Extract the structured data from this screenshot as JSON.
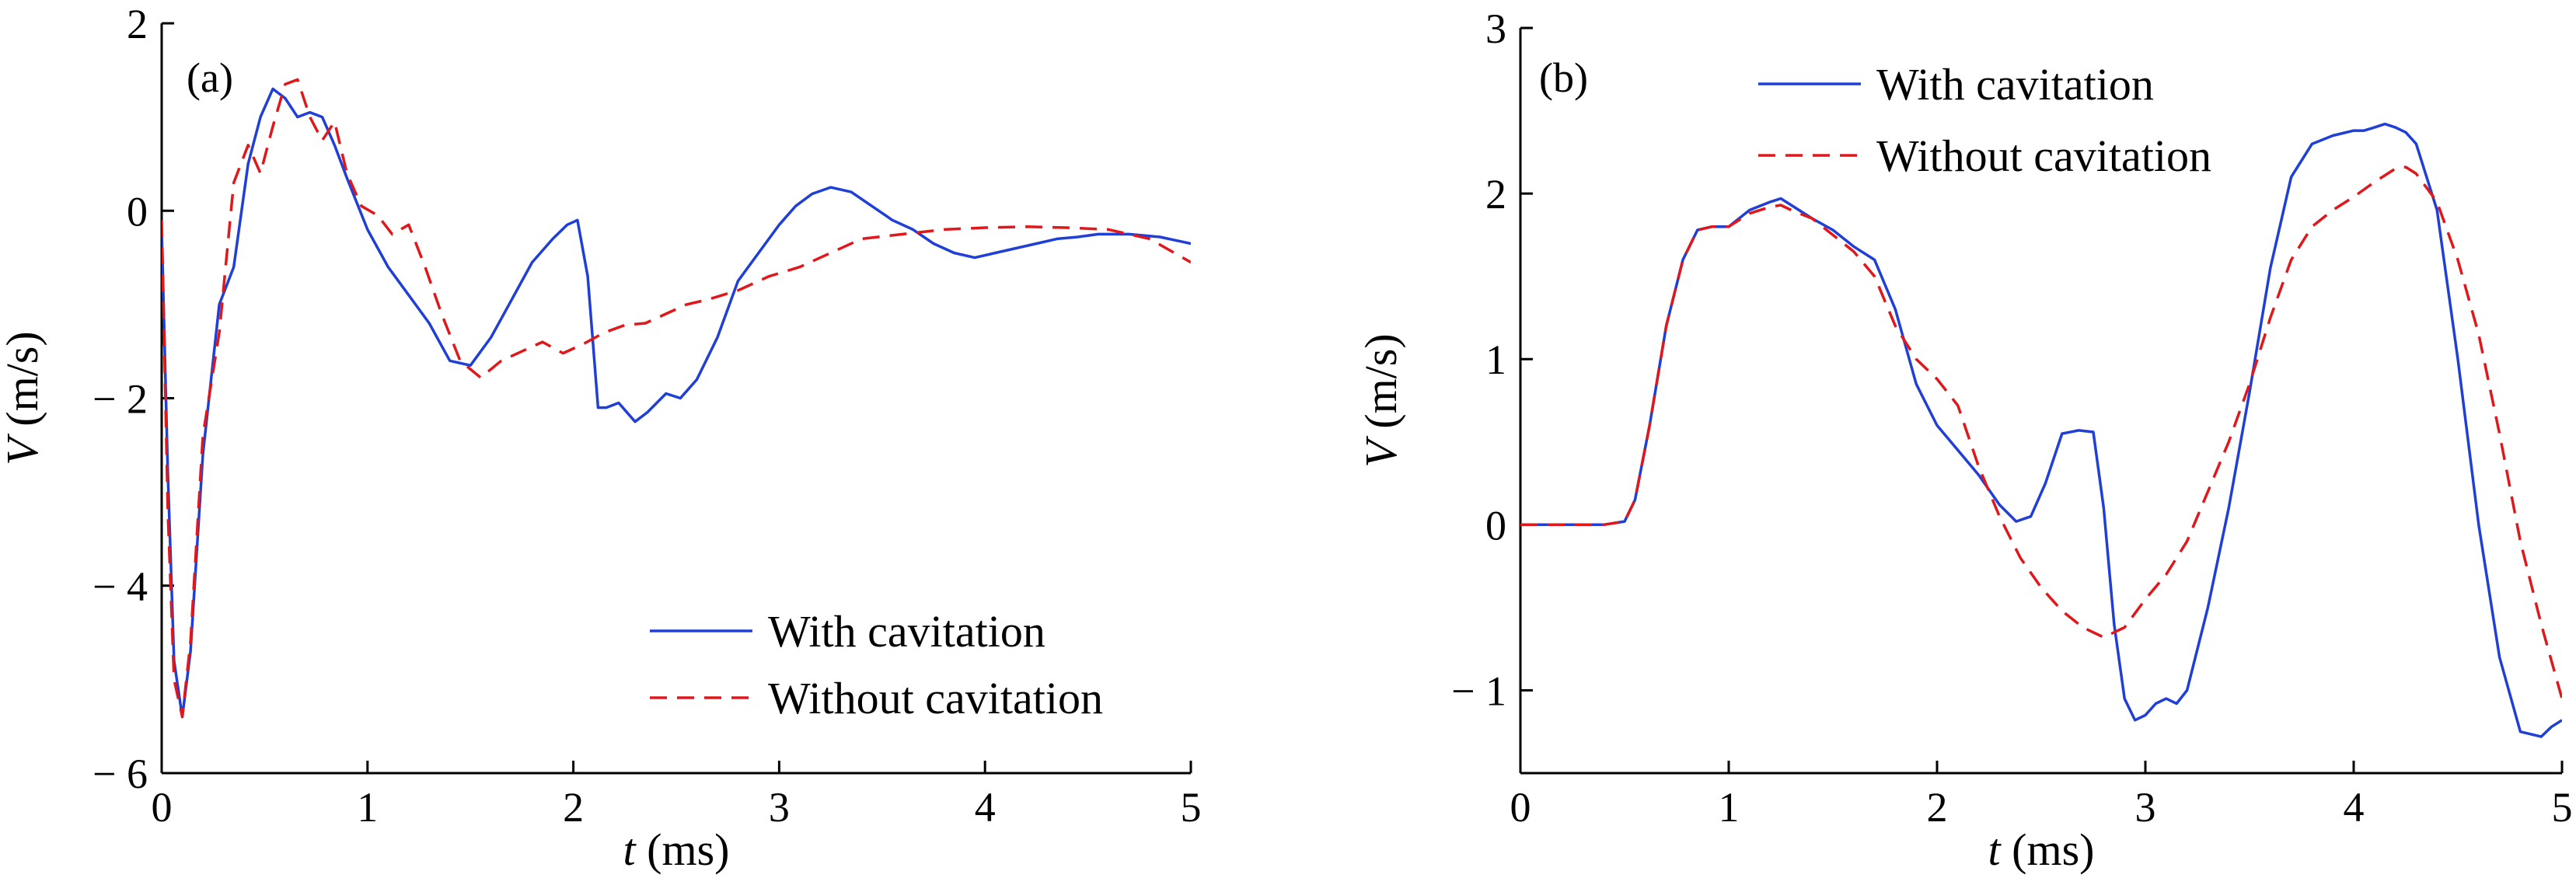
{
  "chart_data": [
    {
      "type": "line",
      "panel_label": "(a)",
      "xlabel": {
        "var": "t",
        "unit": " (ms)"
      },
      "ylabel": {
        "var": "V",
        "unit": " (m/s)"
      },
      "xlim": [
        0,
        5
      ],
      "ylim": [
        -6,
        2
      ],
      "xticks": [
        0,
        1,
        2,
        3,
        4,
        5
      ],
      "yticks": [
        2,
        0,
        -2,
        -4,
        -6
      ],
      "xtick_labels": [
        "0",
        "1",
        "2",
        "3",
        "4",
        "5"
      ],
      "ytick_labels": [
        "2",
        "0",
        "− 2",
        "− 4",
        "− 6"
      ],
      "grid": false,
      "legend_position": "bottom-right",
      "series": [
        {
          "name": "With cavitation",
          "color": "#1f3fd6",
          "dash": "solid",
          "x": [
            0,
            0.03,
            0.06,
            0.1,
            0.14,
            0.2,
            0.28,
            0.35,
            0.42,
            0.48,
            0.54,
            0.6,
            0.66,
            0.72,
            0.78,
            0.84,
            0.9,
            1.0,
            1.1,
            1.2,
            1.3,
            1.4,
            1.5,
            1.6,
            1.7,
            1.8,
            1.9,
            1.97,
            2.02,
            2.07,
            2.12,
            2.16,
            2.22,
            2.3,
            2.36,
            2.45,
            2.52,
            2.6,
            2.7,
            2.8,
            2.9,
            3.0,
            3.08,
            3.16,
            3.25,
            3.35,
            3.45,
            3.55,
            3.65,
            3.75,
            3.85,
            3.95,
            4.05,
            4.15,
            4.25,
            4.35,
            4.45,
            4.55,
            4.7,
            4.85,
            5.0
          ],
          "y": [
            -0.2,
            -2.8,
            -4.8,
            -5.4,
            -4.7,
            -2.6,
            -1.0,
            -0.6,
            0.5,
            1.0,
            1.3,
            1.2,
            1.0,
            1.05,
            1.0,
            0.7,
            0.35,
            -0.2,
            -0.6,
            -0.9,
            -1.2,
            -1.6,
            -1.65,
            -1.35,
            -0.95,
            -0.55,
            -0.3,
            -0.15,
            -0.1,
            -0.7,
            -2.1,
            -2.1,
            -2.05,
            -2.25,
            -2.15,
            -1.95,
            -2.0,
            -1.8,
            -1.35,
            -0.75,
            -0.45,
            -0.15,
            0.05,
            0.18,
            0.25,
            0.2,
            0.05,
            -0.1,
            -0.2,
            -0.35,
            -0.45,
            -0.5,
            -0.45,
            -0.4,
            -0.35,
            -0.3,
            -0.28,
            -0.25,
            -0.25,
            -0.28,
            -0.35
          ]
        },
        {
          "name": "Without cavitation",
          "color": "#e0181c",
          "dash": "dashed",
          "x": [
            0,
            0.03,
            0.06,
            0.1,
            0.14,
            0.2,
            0.28,
            0.35,
            0.42,
            0.48,
            0.54,
            0.6,
            0.66,
            0.72,
            0.78,
            0.84,
            0.9,
            0.97,
            1.05,
            1.12,
            1.2,
            1.28,
            1.36,
            1.45,
            1.55,
            1.65,
            1.75,
            1.85,
            1.95,
            2.05,
            2.15,
            2.25,
            2.35,
            2.45,
            2.55,
            2.65,
            2.8,
            2.95,
            3.1,
            3.25,
            3.4,
            3.6,
            3.8,
            4.0,
            4.2,
            4.4,
            4.6,
            4.8,
            5.0
          ],
          "y": [
            -0.1,
            -3.2,
            -5.0,
            -5.4,
            -4.6,
            -2.4,
            -1.3,
            0.3,
            0.7,
            0.4,
            0.9,
            1.35,
            1.4,
            1.0,
            0.75,
            0.95,
            0.4,
            0.05,
            -0.05,
            -0.25,
            -0.15,
            -0.6,
            -1.1,
            -1.6,
            -1.78,
            -1.6,
            -1.5,
            -1.4,
            -1.52,
            -1.42,
            -1.3,
            -1.22,
            -1.2,
            -1.1,
            -1.0,
            -0.95,
            -0.85,
            -0.7,
            -0.6,
            -0.45,
            -0.3,
            -0.25,
            -0.2,
            -0.18,
            -0.17,
            -0.18,
            -0.2,
            -0.3,
            -0.55
          ]
        }
      ]
    },
    {
      "type": "line",
      "panel_label": "(b)",
      "xlabel": {
        "var": "t",
        "unit": " (ms)"
      },
      "ylabel": {
        "var": "V",
        "unit": " (m/s)"
      },
      "xlim": [
        0,
        5
      ],
      "ylim": [
        -1.5,
        3
      ],
      "xticks": [
        0,
        1,
        2,
        3,
        4,
        5
      ],
      "yticks": [
        3,
        2,
        1,
        0,
        -1
      ],
      "xtick_labels": [
        "0",
        "1",
        "2",
        "3",
        "4",
        "5"
      ],
      "ytick_labels": [
        "3",
        "2",
        "1",
        "0",
        "− 1"
      ],
      "grid": false,
      "legend_position": "top-left",
      "series": [
        {
          "name": "With cavitation",
          "color": "#1f3fd6",
          "dash": "solid",
          "x": [
            0,
            0.2,
            0.4,
            0.5,
            0.55,
            0.62,
            0.7,
            0.78,
            0.85,
            0.92,
            1.0,
            1.1,
            1.2,
            1.25,
            1.3,
            1.4,
            1.5,
            1.6,
            1.7,
            1.8,
            1.9,
            2.0,
            2.1,
            2.2,
            2.3,
            2.38,
            2.45,
            2.52,
            2.6,
            2.68,
            2.75,
            2.8,
            2.85,
            2.9,
            2.95,
            3.0,
            3.05,
            3.1,
            3.15,
            3.2,
            3.3,
            3.4,
            3.5,
            3.6,
            3.7,
            3.8,
            3.9,
            4.0,
            4.05,
            4.1,
            4.15,
            4.2,
            4.25,
            4.3,
            4.4,
            4.5,
            4.6,
            4.7,
            4.8,
            4.9,
            4.95,
            5.0
          ],
          "y": [
            0,
            0,
            0,
            0.02,
            0.15,
            0.6,
            1.2,
            1.6,
            1.78,
            1.8,
            1.8,
            1.9,
            1.95,
            1.97,
            1.93,
            1.85,
            1.78,
            1.68,
            1.6,
            1.3,
            0.85,
            0.6,
            0.45,
            0.3,
            0.12,
            0.02,
            0.05,
            0.25,
            0.55,
            0.57,
            0.56,
            0.1,
            -0.6,
            -1.05,
            -1.18,
            -1.15,
            -1.08,
            -1.05,
            -1.08,
            -1.0,
            -0.5,
            0.1,
            0.8,
            1.55,
            2.1,
            2.3,
            2.35,
            2.38,
            2.38,
            2.4,
            2.42,
            2.4,
            2.37,
            2.3,
            1.9,
            1.0,
            0.0,
            -0.8,
            -1.25,
            -1.28,
            -1.22,
            -1.18
          ]
        },
        {
          "name": "Without cavitation",
          "color": "#e0181c",
          "dash": "dashed",
          "x": [
            0,
            0.2,
            0.4,
            0.5,
            0.55,
            0.62,
            0.7,
            0.78,
            0.85,
            0.92,
            1.0,
            1.1,
            1.2,
            1.25,
            1.3,
            1.4,
            1.5,
            1.6,
            1.7,
            1.8,
            1.9,
            2.0,
            2.1,
            2.2,
            2.3,
            2.4,
            2.5,
            2.6,
            2.7,
            2.8,
            2.9,
            3.0,
            3.1,
            3.2,
            3.3,
            3.4,
            3.5,
            3.6,
            3.7,
            3.8,
            3.9,
            4.0,
            4.1,
            4.2,
            4.25,
            4.3,
            4.4,
            4.5,
            4.6,
            4.7,
            4.8,
            4.9,
            5.0
          ],
          "y": [
            0,
            0,
            0,
            0.02,
            0.15,
            0.6,
            1.2,
            1.6,
            1.78,
            1.8,
            1.8,
            1.88,
            1.92,
            1.93,
            1.9,
            1.85,
            1.75,
            1.65,
            1.5,
            1.2,
            1.0,
            0.88,
            0.72,
            0.35,
            0.05,
            -0.2,
            -0.38,
            -0.52,
            -0.62,
            -0.68,
            -0.62,
            -0.45,
            -0.3,
            -0.1,
            0.2,
            0.5,
            0.85,
            1.25,
            1.6,
            1.8,
            1.9,
            1.98,
            2.07,
            2.15,
            2.16,
            2.12,
            1.95,
            1.6,
            1.15,
            0.55,
            -0.1,
            -0.6,
            -1.05
          ]
        }
      ]
    }
  ]
}
